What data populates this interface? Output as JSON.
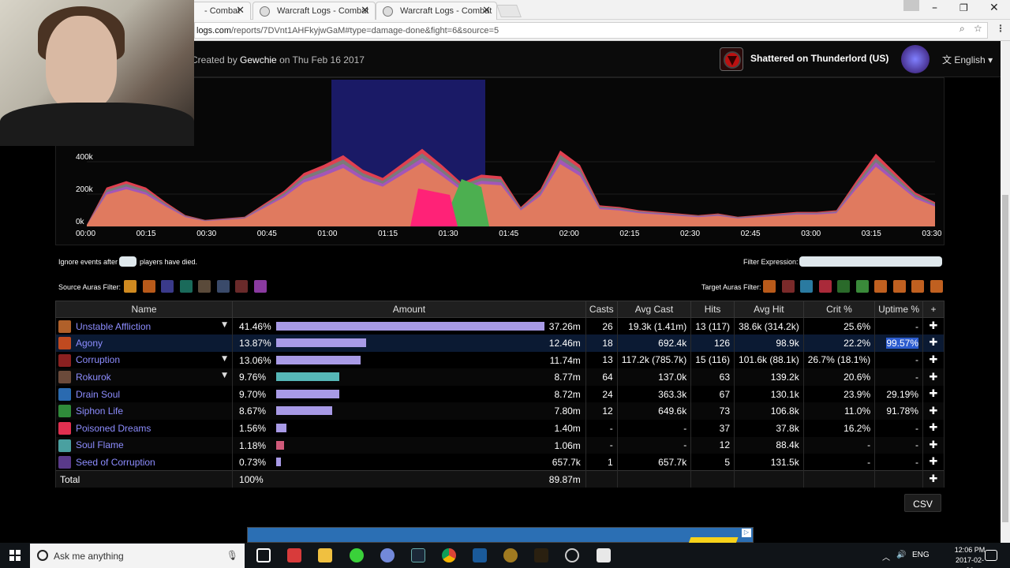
{
  "browser": {
    "tabs": [
      {
        "title": "- Combat"
      },
      {
        "title": "Warcraft Logs - Combat"
      },
      {
        "title": "Warcraft Logs - Combat"
      }
    ],
    "url_host": "logs.com",
    "url_path": "/reports/7DVnt1AHFkyjwGaM#type=damage-done&fight=6&source=5"
  },
  "header": {
    "created_prefix": "Created by ",
    "author": "Gewchie",
    "created_suffix": " on Thu Feb 16 2017",
    "realm": "Shattered on Thunderlord (US)",
    "language": "English"
  },
  "chart_data": {
    "type": "area",
    "y_ticks": [
      "0k",
      "200k",
      "400k"
    ],
    "x_ticks": [
      "00:00",
      "00:15",
      "00:30",
      "00:45",
      "01:00",
      "01:15",
      "01:30",
      "01:45",
      "02:00",
      "02:15",
      "02:30",
      "02:45",
      "03:00",
      "03:15",
      "03:30"
    ],
    "x_seconds": [
      0,
      5,
      10,
      15,
      20,
      25,
      30,
      35,
      40,
      45,
      50,
      55,
      60,
      65,
      70,
      75,
      80,
      85,
      90,
      95,
      100,
      105,
      110,
      115,
      120,
      125,
      130,
      135,
      140,
      145,
      150,
      155,
      160,
      165,
      170,
      175,
      180,
      185,
      190,
      195,
      200,
      205,
      210,
      215
    ],
    "total_k": [
      10,
      240,
      280,
      240,
      150,
      70,
      40,
      50,
      60,
      140,
      220,
      330,
      380,
      440,
      350,
      300,
      390,
      480,
      380,
      270,
      320,
      310,
      120,
      230,
      470,
      380,
      130,
      120,
      100,
      90,
      80,
      70,
      80,
      60,
      70,
      80,
      90,
      90,
      100,
      280,
      450,
      330,
      210,
      150
    ],
    "base_fraction": 0.82,
    "selection_seconds": [
      62,
      101
    ],
    "colors": {
      "base": "#e07a5f",
      "mid": "#a356b8",
      "top": "#7a7a7a",
      "upper": "#e04050",
      "green": "#4caf50",
      "pink": "#ff2277",
      "selection": "#1a1a66"
    }
  },
  "filters": {
    "ignore_prefix": "Ignore events after",
    "ignore_suffix": "players have died.",
    "filter_expression": "Filter Expression:",
    "source_auras": "Source Auras Filter:",
    "target_auras": "Target Auras Filter:"
  },
  "table": {
    "headers": [
      "Name",
      "Amount",
      "Casts",
      "Avg Cast",
      "Hits",
      "Avg Hit",
      "Crit %",
      "Uptime %",
      "+"
    ],
    "rows": [
      {
        "name": "Unstable Affliction",
        "pct": "41.46%",
        "fill": 0.4146,
        "bar": "#a89ae6",
        "amount": "37.26m",
        "casts": "26",
        "avgcast": "19.3k (1.41m)",
        "hits": "13 (117)",
        "avghit": "38.6k (314.2k)",
        "crit": "25.6%",
        "uptime": "-",
        "icon": "#b0602a",
        "caret": true
      },
      {
        "name": "Agony",
        "pct": "13.87%",
        "fill": 0.1387,
        "bar": "#a89ae6",
        "amount": "12.46m",
        "casts": "18",
        "avgcast": "692.4k",
        "hits": "126",
        "avghit": "98.9k",
        "crit": "22.2%",
        "uptime": "99.57%",
        "icon": "#c04a20",
        "caret": false,
        "selected": true
      },
      {
        "name": "Corruption",
        "pct": "13.06%",
        "fill": 0.1306,
        "bar": "#a89ae6",
        "amount": "11.74m",
        "casts": "13",
        "avgcast": "117.2k (785.7k)",
        "hits": "15 (116)",
        "avghit": "101.6k (88.1k)",
        "crit": "26.7% (18.1%)",
        "uptime": "-",
        "icon": "#8a2020",
        "caret": true
      },
      {
        "name": "Rokurok",
        "pct": "9.76%",
        "fill": 0.0976,
        "bar": "#56b7b7",
        "amount": "8.77m",
        "casts": "64",
        "avgcast": "137.0k",
        "hits": "63",
        "avghit": "139.2k",
        "crit": "20.6%",
        "uptime": "-",
        "icon": "#6b4a3a",
        "caret": true
      },
      {
        "name": "Drain Soul",
        "pct": "9.70%",
        "fill": 0.097,
        "bar": "#a89ae6",
        "amount": "8.72m",
        "casts": "24",
        "avgcast": "363.3k",
        "hits": "67",
        "avghit": "130.1k",
        "crit": "23.9%",
        "uptime": "29.19%",
        "icon": "#2a6ab0",
        "caret": false
      },
      {
        "name": "Siphon Life",
        "pct": "8.67%",
        "fill": 0.0867,
        "bar": "#a89ae6",
        "amount": "7.80m",
        "casts": "12",
        "avgcast": "649.6k",
        "hits": "73",
        "avghit": "106.8k",
        "crit": "11.0%",
        "uptime": "91.78%",
        "icon": "#2f8a3a",
        "caret": false
      },
      {
        "name": "Poisoned Dreams",
        "pct": "1.56%",
        "fill": 0.0156,
        "bar": "#a89ae6",
        "amount": "1.40m",
        "casts": "-",
        "avgcast": "-",
        "hits": "37",
        "avghit": "37.8k",
        "crit": "16.2%",
        "uptime": "-",
        "icon": "#e03050",
        "caret": false
      },
      {
        "name": "Soul Flame",
        "pct": "1.18%",
        "fill": 0.0118,
        "bar": "#d05a7a",
        "amount": "1.06m",
        "casts": "-",
        "avgcast": "-",
        "hits": "12",
        "avghit": "88.4k",
        "crit": "-",
        "uptime": "-",
        "icon": "#4aa0a0",
        "caret": false
      },
      {
        "name": "Seed of Corruption",
        "pct": "0.73%",
        "fill": 0.0073,
        "bar": "#a89ae6",
        "amount": "657.7k",
        "casts": "1",
        "avgcast": "657.7k",
        "hits": "5",
        "avghit": "131.5k",
        "crit": "-",
        "uptime": "-",
        "icon": "#5a3a8a",
        "caret": false
      }
    ],
    "total": {
      "label": "Total",
      "pct": "100%",
      "amount": "89.87m"
    }
  },
  "csv_label": "CSV",
  "taskbar": {
    "search": "Ask me anything",
    "lang": "ENG",
    "time": "12:06 PM",
    "date": "2017-02-26"
  }
}
